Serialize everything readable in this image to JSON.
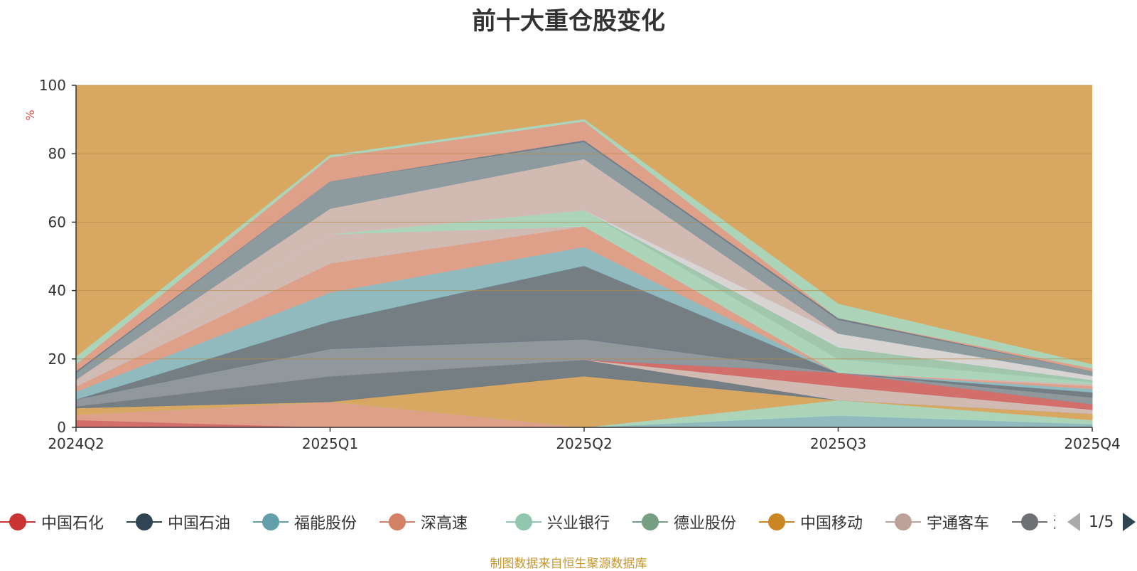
{
  "chart_data": {
    "type": "area",
    "stacked": true,
    "title": "前十大重仓股变化",
    "ylabel": "%",
    "ylim": [
      0,
      100
    ],
    "yticks": [
      0,
      20,
      40,
      60,
      80,
      100
    ],
    "categories": [
      "2024Q2",
      "2025Q1",
      "2025Q2",
      "2025Q3",
      "2025Q4"
    ],
    "background_color": "#d8a862",
    "series": [
      {
        "name": "中国石化",
        "color": "#d26a6a",
        "values": [
          2.2,
          0.0,
          0.0,
          0.0,
          0.0
        ]
      },
      {
        "name": "深高速",
        "color": "#e0a08c",
        "values": [
          1.5,
          7.5,
          0.0,
          0.0,
          0.0
        ]
      },
      {
        "name": "福能股份",
        "color": "#8bbcc6",
        "values": [
          0.0,
          0.0,
          0.0,
          3.5,
          1.0
        ]
      },
      {
        "name": "兴业银行",
        "color": "#a8d8bf",
        "values": [
          0.0,
          0.0,
          0.0,
          4.5,
          1.2
        ]
      },
      {
        "name": "中国移动",
        "color": "#d8a862",
        "values": [
          2.0,
          0.0,
          15.0,
          0.0,
          1.8
        ]
      },
      {
        "name": "中国石油",
        "color": "#6c7b86",
        "values": [
          0.5,
          7.5,
          4.8,
          0.0,
          0.0
        ]
      },
      {
        "name": "宇通客车",
        "color": "#d0bcb8",
        "values": [
          0.0,
          0.0,
          0.0,
          4.0,
          1.2
        ]
      },
      {
        "name": "中国石化",
        "color": "#d26a6a",
        "values": [
          0.0,
          0.0,
          0.0,
          4.0,
          1.6
        ]
      },
      {
        "name": "德业股份",
        "color": "#8a97a0",
        "values": [
          2.0,
          8.0,
          6.0,
          0.0,
          2.0
        ]
      },
      {
        "name": "润本股份",
        "color": "#6c7b86",
        "values": [
          0.0,
          8.0,
          21.5,
          0.0,
          1.5
        ]
      },
      {
        "name": "福能股份",
        "color": "#8bbcc6",
        "values": [
          2.3,
          8.5,
          5.5,
          0.0,
          1.0
        ]
      },
      {
        "name": "深高速",
        "color": "#e0a08c",
        "values": [
          1.5,
          8.5,
          6.0,
          0.0,
          0.8
        ]
      },
      {
        "name": "宇通客车",
        "color": "#d0bcb8",
        "values": [
          1.0,
          8.5,
          0.0,
          0.0,
          0.6
        ]
      },
      {
        "name": "兴业银行",
        "color": "#a8d8bf",
        "values": [
          0.0,
          0.0,
          4.7,
          4.0,
          0.6
        ]
      },
      {
        "name": "兴业银行",
        "color": "#9cc9b2",
        "values": [
          0.0,
          0.0,
          0.0,
          3.5,
          0.6
        ]
      },
      {
        "name": "宇通客车",
        "color": "#d8d8dc",
        "values": [
          0.0,
          0.0,
          0.0,
          4.0,
          1.2
        ]
      },
      {
        "name": "宇通客车",
        "color": "#d0bcb8",
        "values": [
          1.0,
          7.5,
          15.0,
          0.0,
          0.0
        ]
      },
      {
        "name": "中国石油",
        "color": "#889aa3",
        "values": [
          2.0,
          8.0,
          5.0,
          4.0,
          1.4
        ]
      },
      {
        "name": "中国石油",
        "color": "#6f7d88",
        "values": [
          0.5,
          0.0,
          0.5,
          0.5,
          0.0
        ]
      },
      {
        "name": "深高速",
        "color": "#e0a08c",
        "values": [
          2.0,
          7.0,
          5.5,
          0.0,
          0.8
        ]
      },
      {
        "name": "兴业银行",
        "color": "#a8d8bf",
        "values": [
          2.0,
          0.5,
          0.5,
          4.0,
          1.0
        ]
      }
    ],
    "legend": {
      "items": [
        {
          "name": "中国石化",
          "color": "#cc3333"
        },
        {
          "name": "中国石油",
          "color": "#2f4554"
        },
        {
          "name": "福能股份",
          "color": "#61a0a8"
        },
        {
          "name": "深高速",
          "color": "#d48265"
        },
        {
          "name": "兴业银行",
          "color": "#91c7ae"
        },
        {
          "name": "德业股份",
          "color": "#749f83"
        },
        {
          "name": "中国移动",
          "color": "#ca8622"
        },
        {
          "name": "宇通客车",
          "color": "#bda29a"
        },
        {
          "name": "润本股份",
          "color": "#6e7074"
        }
      ],
      "page": "1/5"
    }
  },
  "footer": {
    "source": "制图数据来自恒生聚源数据库"
  }
}
